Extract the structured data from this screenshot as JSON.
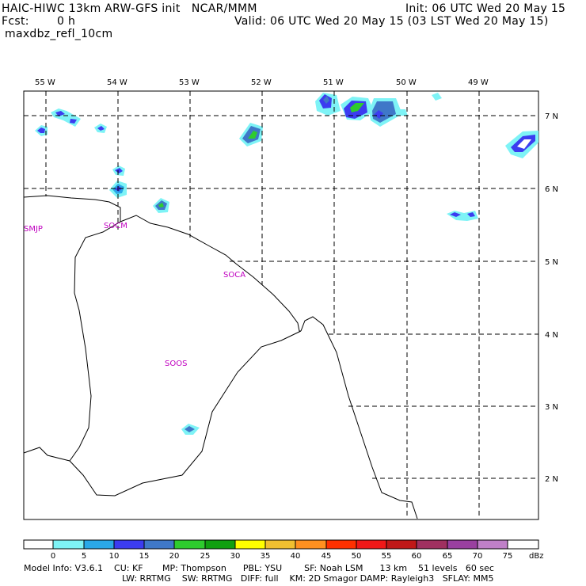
{
  "header": {
    "title": "HAIC-HIWC 13km ARW-GFS init   NCAR/MMM",
    "init": "Init: 06 UTC Wed 20 May 15",
    "fcst_label": "Fcst:",
    "fcst_value": "0 h",
    "valid": "Valid: 06 UTC Wed 20 May 15 (03 LST Wed 20 May 15)",
    "field": "maxdbz_refl_10cm"
  },
  "map": {
    "lon_labels": [
      "55 W",
      "54 W",
      "53 W",
      "52 W",
      "51 W",
      "50 W",
      "49 W"
    ],
    "lat_labels": [
      "7 N",
      "6 N",
      "5 N",
      "4 N",
      "3 N",
      "2 N"
    ],
    "stations": [
      "SMJP",
      "SOCM",
      "SOCA",
      "SOOS"
    ]
  },
  "colorbar": {
    "ticks": [
      "0",
      "5",
      "10",
      "15",
      "20",
      "25",
      "30",
      "35",
      "40",
      "45",
      "50",
      "55",
      "60",
      "65",
      "70",
      "75"
    ],
    "unit": "dBz",
    "colors": [
      "#ffffff",
      "#7ef3f6",
      "#2aa8e8",
      "#3c3cf0",
      "#3f78c8",
      "#2ecc2e",
      "#10a010",
      "#ffff00",
      "#f0c030",
      "#ff9020",
      "#ff3000",
      "#f01818",
      "#c01818",
      "#a03060",
      "#9a40a0",
      "#c080c8",
      "#ffffff"
    ]
  },
  "footer": {
    "line1": "Model Info: V3.6.1    CU: KF       MP: Thompson      PBL: YSU        SF: Noah LSM      13 km    51 levels   60 sec",
    "line2": "LW: RRTMG    SW: RRTMG   DIFF: full    KM: 2D Smagor DAMP: Rayleigh3   SFLAY: MM5"
  }
}
